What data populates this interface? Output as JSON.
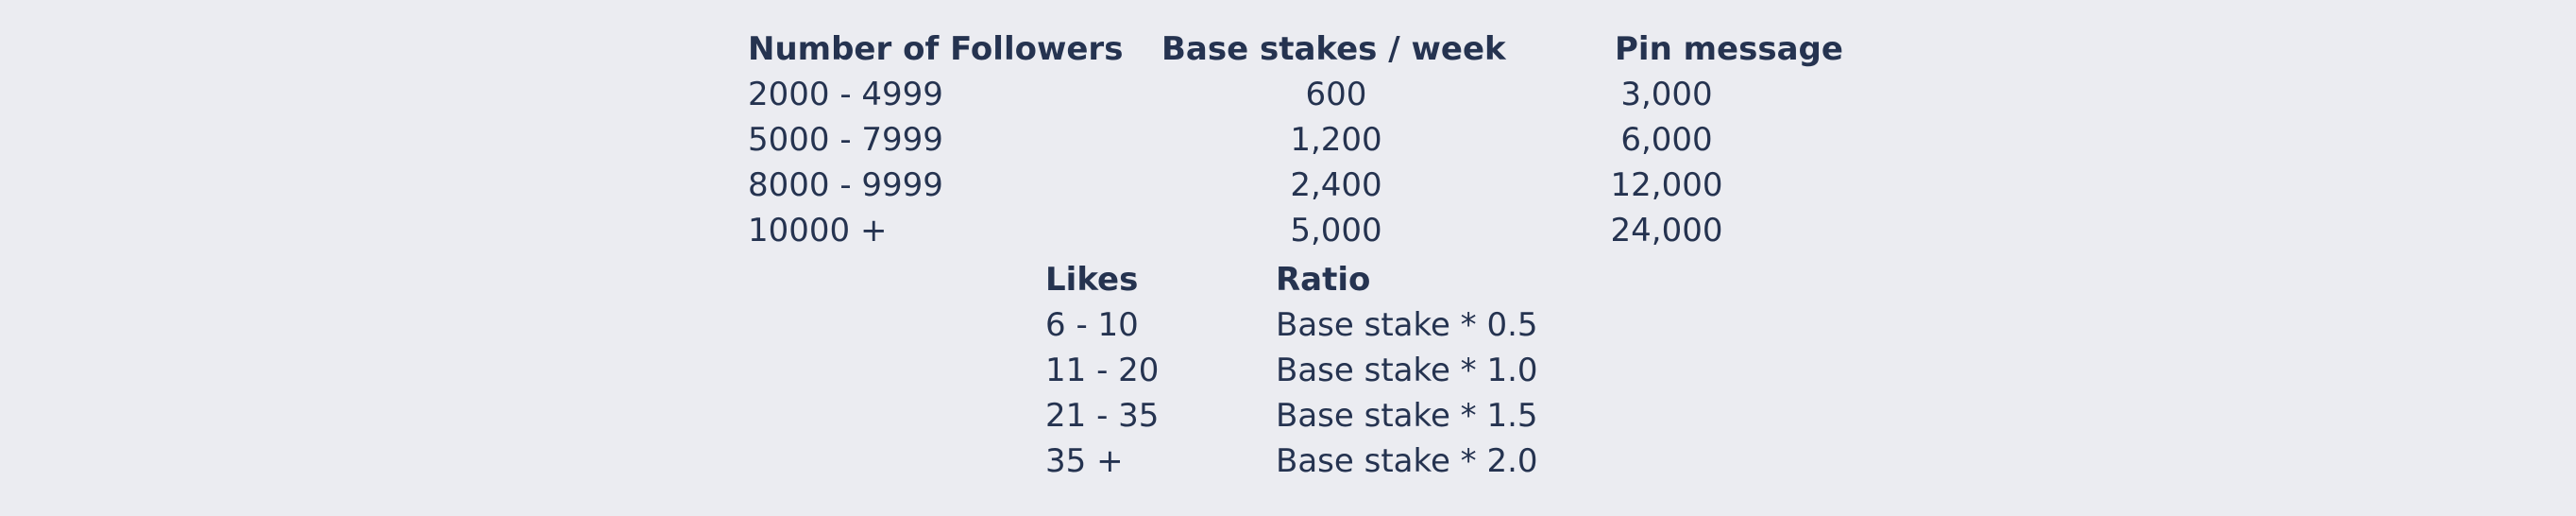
{
  "stakes_table": {
    "headers": [
      "Number of Followers",
      "Base stakes / week",
      "Pin message"
    ],
    "rows": [
      [
        "2000 - 4999",
        "600",
        "3,000"
      ],
      [
        "5000 - 7999",
        "1,200",
        "6,000"
      ],
      [
        "8000 - 9999",
        "2,400",
        "12,000"
      ],
      [
        "10000 +",
        "5,000",
        "24,000"
      ]
    ]
  },
  "likes_table": {
    "headers": [
      "Likes",
      "Ratio"
    ],
    "rows": [
      [
        "6 - 10",
        "Base stake * 0.5"
      ],
      [
        "11 - 20",
        "Base stake * 1.0"
      ],
      [
        "21 - 35",
        "Base stake * 1.5"
      ],
      [
        "35 +",
        "Base stake * 2.0"
      ]
    ]
  }
}
